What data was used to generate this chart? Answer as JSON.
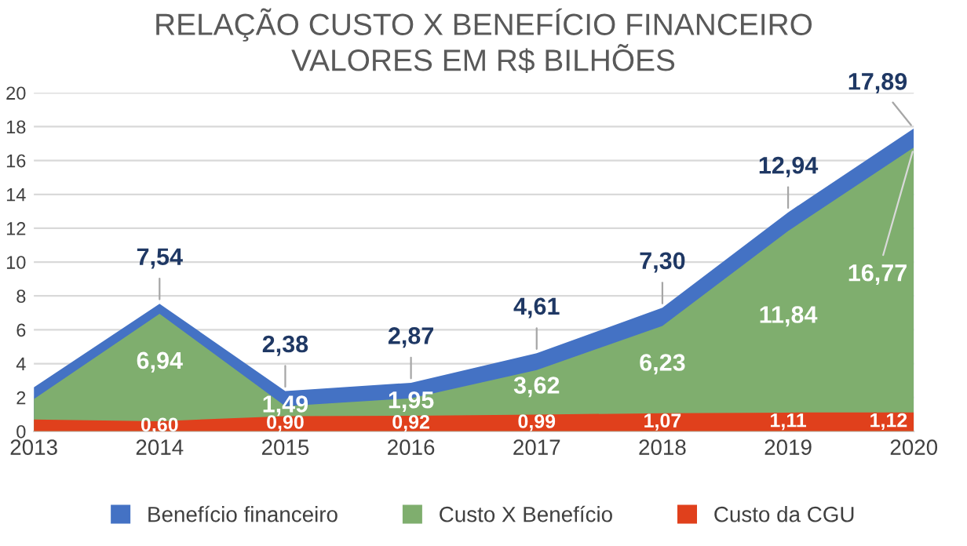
{
  "chart_data": {
    "type": "area",
    "title": "RELAÇÃO CUSTO X BENEFÍCIO FINANCEIRO\nVALORES EM R$ BILHÕES",
    "categories": [
      "2013",
      "2014",
      "2015",
      "2016",
      "2017",
      "2018",
      "2019",
      "2020"
    ],
    "series": [
      {
        "name": "Benefício financeiro",
        "color": "#4472c4",
        "values": [
          2.6,
          7.54,
          2.38,
          2.87,
          4.61,
          7.3,
          12.94,
          17.89
        ],
        "value_labels": [
          null,
          "7,54",
          "2,38",
          "2,87",
          "4,61",
          "7,30",
          "12,94",
          "17,89"
        ]
      },
      {
        "name": "Custo X Benefício",
        "color": "#7fae6e",
        "values": [
          1.9,
          6.94,
          1.49,
          1.95,
          3.62,
          6.23,
          11.84,
          16.77
        ],
        "value_labels": [
          null,
          "6,94",
          "1,49",
          "1,95",
          "3,62",
          "6,23",
          "11,84",
          "16,77"
        ]
      },
      {
        "name": "Custo da CGU",
        "color": "#e0401c",
        "values": [
          0.7,
          0.6,
          0.9,
          0.92,
          0.99,
          1.07,
          1.11,
          1.12
        ],
        "value_labels": [
          null,
          "0,60",
          "0,90",
          "0,92",
          "0,99",
          "1,07",
          "1,11",
          "1,12"
        ]
      }
    ],
    "ylim": [
      0,
      20
    ],
    "yticks": [
      0,
      2,
      4,
      6,
      8,
      10,
      12,
      14,
      16,
      18,
      20
    ],
    "grid": "y",
    "legend": "bottom"
  }
}
